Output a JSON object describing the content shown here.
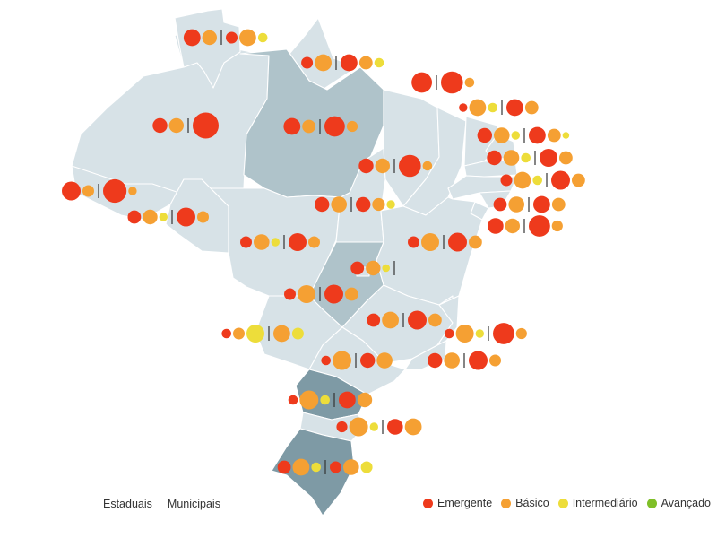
{
  "legend": {
    "scope_left": "Estaduais",
    "scope_right": "Municipais",
    "levels": [
      {
        "key": "emergente",
        "label": "Emergente",
        "color": "#ee3a1c"
      },
      {
        "key": "basico",
        "label": "Básico",
        "color": "#f5a033"
      },
      {
        "key": "intermediario",
        "label": "Intermediário",
        "color": "#eddd3a"
      },
      {
        "key": "avancado",
        "label": "Avançado",
        "color": "#7fbf28"
      }
    ]
  },
  "colors": {
    "state_light": "#d7e2e7",
    "state_mid": "#afc3ca",
    "state_dark": "#7e9aa5",
    "separator": "#333333"
  },
  "states": [
    {
      "code": "RR",
      "shade": "light",
      "estaduais": {
        "emergente": 3,
        "basico": 2,
        "intermediario": 0,
        "avancado": 0
      },
      "municipais": {
        "emergente": 1,
        "basico": 3,
        "intermediario": 0.5,
        "avancado": 0
      }
    },
    {
      "code": "AP",
      "shade": "light",
      "estaduais": {
        "emergente": 1,
        "basico": 3,
        "intermediario": 0,
        "avancado": 0
      },
      "municipais": {
        "emergente": 3,
        "basico": 1.5,
        "intermediario": 0.5,
        "avancado": 0
      }
    },
    {
      "code": "MA",
      "shade": "light",
      "estaduais": {
        "emergente": 5,
        "basico": 0,
        "intermediario": 0,
        "avancado": 0
      },
      "municipais": {
        "emergente": 6,
        "basico": 0.5,
        "intermediario": 0,
        "avancado": 0
      }
    },
    {
      "code": "AM",
      "shade": "light",
      "estaduais": {
        "emergente": 2,
        "basico": 2,
        "intermediario": 0,
        "avancado": 0
      },
      "municipais": {
        "emergente": 9,
        "basico": 0,
        "intermediario": 0,
        "avancado": 0
      }
    },
    {
      "code": "PA",
      "shade": "mid",
      "estaduais": {
        "emergente": 3,
        "basico": 1.5,
        "intermediario": 0,
        "avancado": 0
      },
      "municipais": {
        "emergente": 5,
        "basico": 0.8,
        "intermediario": 0,
        "avancado": 0
      }
    },
    {
      "code": "CE",
      "shade": "light",
      "estaduais": {
        "emergente": 0.3,
        "basico": 3,
        "intermediario": 0.5,
        "avancado": 0
      },
      "municipais": {
        "emergente": 3,
        "basico": 1.5,
        "intermediario": 0,
        "avancado": 0
      }
    },
    {
      "code": "RN",
      "shade": "light",
      "estaduais": {
        "emergente": 2,
        "basico": 2.5,
        "intermediario": 0.3,
        "avancado": 0
      },
      "municipais": {
        "emergente": 3,
        "basico": 1.5,
        "intermediario": 0.1,
        "avancado": 0
      }
    },
    {
      "code": "PB",
      "shade": "light",
      "estaduais": {
        "emergente": 2,
        "basico": 2.5,
        "intermediario": 0.5,
        "avancado": 0
      },
      "municipais": {
        "emergente": 3.5,
        "basico": 1.5,
        "intermediario": 0,
        "avancado": 0
      }
    },
    {
      "code": "TO",
      "shade": "light",
      "estaduais": {
        "emergente": 2,
        "basico": 2,
        "intermediario": 0,
        "avancado": 0
      },
      "municipais": {
        "emergente": 6,
        "basico": 0.5,
        "intermediario": 0,
        "avancado": 0
      }
    },
    {
      "code": "PE",
      "shade": "light",
      "estaduais": {
        "emergente": 1,
        "basico": 3,
        "intermediario": 0.5,
        "avancado": 0
      },
      "municipais": {
        "emergente": 4,
        "basico": 1.5,
        "intermediario": 0,
        "avancado": 0
      }
    },
    {
      "code": "AC",
      "shade": "light",
      "estaduais": {
        "emergente": 4,
        "basico": 1,
        "intermediario": 0,
        "avancado": 0
      },
      "municipais": {
        "emergente": 7,
        "basico": 0.3,
        "intermediario": 0,
        "avancado": 0
      }
    },
    {
      "code": "AL",
      "shade": "light",
      "estaduais": {
        "emergente": 1.5,
        "basico": 2.5,
        "intermediario": 0,
        "avancado": 0
      },
      "municipais": {
        "emergente": 3,
        "basico": 1.5,
        "intermediario": 0,
        "avancado": 0
      }
    },
    {
      "code": "SE",
      "shade": "light",
      "estaduais": {
        "emergente": 2.5,
        "basico": 2,
        "intermediario": 0,
        "avancado": 0
      },
      "municipais": {
        "emergente": 5.5,
        "basico": 0.8,
        "intermediario": 0,
        "avancado": 0
      }
    },
    {
      "code": "PI",
      "shade": "light",
      "estaduais": {
        "emergente": 2,
        "basico": 2.5,
        "intermediario": 0,
        "avancado": 0
      },
      "municipais": {
        "emergente": 2,
        "basico": 1.3,
        "intermediario": 0.3,
        "avancado": 0
      }
    },
    {
      "code": "RO",
      "shade": "light",
      "estaduais": {
        "emergente": 1.5,
        "basico": 2,
        "intermediario": 0.3,
        "avancado": 0
      },
      "municipais": {
        "emergente": 4,
        "basico": 1,
        "intermediario": 0,
        "avancado": 0
      }
    },
    {
      "code": "MT",
      "shade": "light",
      "estaduais": {
        "emergente": 1,
        "basico": 2.5,
        "intermediario": 0.3,
        "avancado": 0
      },
      "municipais": {
        "emergente": 3.5,
        "basico": 1,
        "intermediario": 0,
        "avancado": 0
      }
    },
    {
      "code": "BA",
      "shade": "light",
      "estaduais": {
        "emergente": 1,
        "basico": 3.5,
        "intermediario": 0,
        "avancado": 0
      },
      "municipais": {
        "emergente": 4,
        "basico": 1.5,
        "intermediario": 0,
        "avancado": 0
      }
    },
    {
      "code": "DF",
      "shade": "light",
      "estaduais": {
        "emergente": 1.5,
        "basico": 2,
        "intermediario": 0.2,
        "avancado": 0
      },
      "municipais": {
        "emergente": 0,
        "basico": 0,
        "intermediario": 0,
        "avancado": 0
      }
    },
    {
      "code": "GO",
      "shade": "mid",
      "estaduais": {
        "emergente": 1,
        "basico": 3.5,
        "intermediario": 0,
        "avancado": 0
      },
      "municipais": {
        "emergente": 4,
        "basico": 1.5,
        "intermediario": 0,
        "avancado": 0
      }
    },
    {
      "code": "MG",
      "shade": "light",
      "estaduais": {
        "emergente": 1.5,
        "basico": 3,
        "intermediario": 0,
        "avancado": 0
      },
      "municipais": {
        "emergente": 4,
        "basico": 1.5,
        "intermediario": 0,
        "avancado": 0
      }
    },
    {
      "code": "ES",
      "shade": "light",
      "estaduais": {
        "emergente": 0.5,
        "basico": 3.5,
        "intermediario": 0.3,
        "avancado": 0
      },
      "municipais": {
        "emergente": 5.5,
        "basico": 0.8,
        "intermediario": 0,
        "avancado": 0
      }
    },
    {
      "code": "MS",
      "shade": "light",
      "estaduais": {
        "emergente": 0.5,
        "basico": 1,
        "intermediario": 3.5,
        "avancado": 0
      },
      "municipais": {
        "emergente": 0,
        "basico": 3,
        "intermediario": 1,
        "avancado": 0
      }
    },
    {
      "code": "SP",
      "shade": "light",
      "estaduais": {
        "emergente": 0.5,
        "basico": 4,
        "intermediario": 0,
        "avancado": 0
      },
      "municipais": {
        "emergente": 2,
        "basico": 2.5,
        "intermediario": 0,
        "avancado": 0
      }
    },
    {
      "code": "RJ",
      "shade": "light",
      "estaduais": {
        "emergente": 2,
        "basico": 2.5,
        "intermediario": 0,
        "avancado": 0
      },
      "municipais": {
        "emergente": 4,
        "basico": 1,
        "intermediario": 0,
        "avancado": 0
      }
    },
    {
      "code": "PR",
      "shade": "dark",
      "estaduais": {
        "emergente": 0.5,
        "basico": 4,
        "intermediario": 0.5,
        "avancado": 0
      },
      "municipais": {
        "emergente": 3,
        "basico": 2,
        "intermediario": 0,
        "avancado": 0
      }
    },
    {
      "code": "SC",
      "shade": "light",
      "estaduais": {
        "emergente": 0.8,
        "basico": 4,
        "intermediario": 0.3,
        "avancado": 0
      },
      "municipais": {
        "emergente": 2.5,
        "basico": 3,
        "intermediario": 0,
        "avancado": 0
      }
    },
    {
      "code": "RS",
      "shade": "dark",
      "estaduais": {
        "emergente": 1.5,
        "basico": 3,
        "intermediario": 0.5,
        "avancado": 0
      },
      "municipais": {
        "emergente": 1,
        "basico": 2.5,
        "intermediario": 1,
        "avancado": 0
      }
    }
  ]
}
